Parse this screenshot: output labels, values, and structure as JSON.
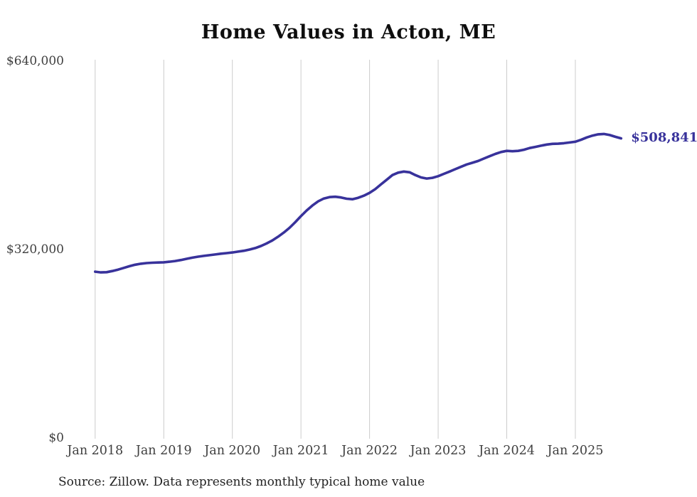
{
  "title": "Home Values in Acton, ME",
  "annotation": {
    "label": "$508,841"
  },
  "source": "Source: Zillow. Data represents monthly typical home value",
  "colors": {
    "line": "#38329b",
    "grid": "#cccccc",
    "axis_text": "#3f3f3f",
    "title_text": "#0e0e0e",
    "source_text": "#222222",
    "background": "#ffffff"
  },
  "chart_data": {
    "type": "line",
    "title": "Home Values in Acton, ME",
    "xlabel": "",
    "ylabel": "",
    "ylim": [
      0,
      640000
    ],
    "grid": "vertical-only",
    "legend": "none",
    "y_ticks": [
      {
        "label": "$640,000",
        "value": 640000
      },
      {
        "label": "$320,000",
        "value": 320000
      },
      {
        "label": "$0",
        "value": 0
      }
    ],
    "x_tick_labels": [
      "Jan 2018",
      "Jan 2019",
      "Jan 2020",
      "Jan 2021",
      "Jan 2022",
      "Jan 2023",
      "Jan 2024",
      "Jan 2025"
    ],
    "end_label": "$508,841",
    "last_value": 508841,
    "series": [
      {
        "name": "Monthly typical home value",
        "start_month": "2018-01",
        "frequency": "monthly",
        "values": [
          282500,
          281200,
          281600,
          283500,
          286000,
          288800,
          291800,
          294300,
          296000,
          297000,
          297600,
          298000,
          298400,
          299300,
          300500,
          302300,
          304300,
          306200,
          307900,
          309300,
          310500,
          311700,
          313000,
          314000,
          315000,
          316500,
          318000,
          320000,
          322500,
          326000,
          330400,
          335600,
          341800,
          348900,
          357000,
          366500,
          376800,
          386400,
          394800,
          401900,
          406700,
          409100,
          409700,
          408500,
          406300,
          405500,
          407900,
          411500,
          416300,
          422600,
          430700,
          438600,
          446600,
          450600,
          452500,
          451300,
          446600,
          442600,
          440600,
          441800,
          444600,
          448600,
          452500,
          456600,
          460600,
          464500,
          467400,
          470500,
          474600,
          478500,
          482400,
          485700,
          487600,
          487000,
          487600,
          489600,
          492400,
          494400,
          496400,
          498400,
          499600,
          499800,
          500600,
          501800,
          503200,
          506400,
          510400,
          513600,
          515800,
          516300,
          514500,
          511500,
          508841
        ]
      }
    ]
  }
}
